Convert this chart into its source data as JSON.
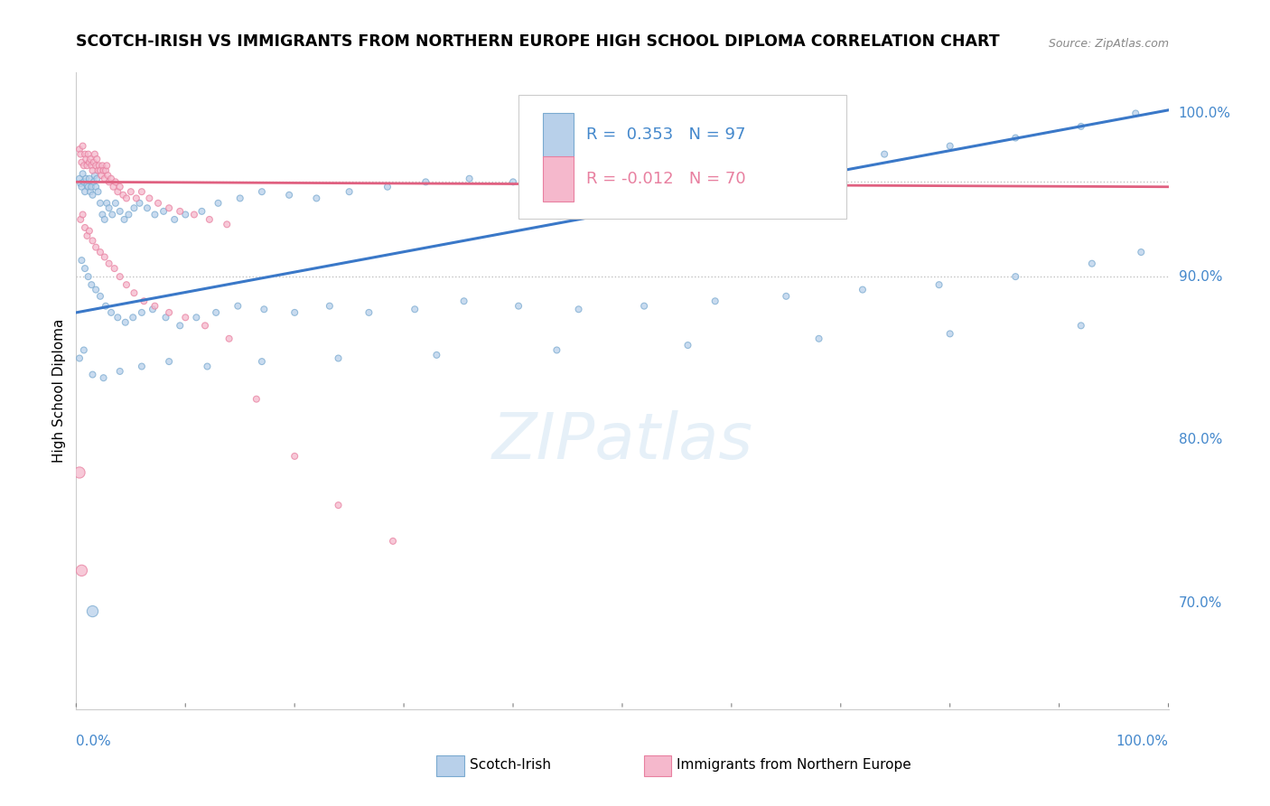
{
  "title": "SCOTCH-IRISH VS IMMIGRANTS FROM NORTHERN EUROPE HIGH SCHOOL DIPLOMA CORRELATION CHART",
  "source": "Source: ZipAtlas.com",
  "ylabel": "High School Diploma",
  "yaxis_labels": [
    "70.0%",
    "80.0%",
    "90.0%",
    "100.0%"
  ],
  "yaxis_values": [
    0.7,
    0.8,
    0.9,
    1.0
  ],
  "xmin": 0.0,
  "xmax": 1.0,
  "ymin": 0.635,
  "ymax": 1.025,
  "blue_r": 0.353,
  "blue_n": 97,
  "pink_r": -0.012,
  "pink_n": 70,
  "blue_fill": "#b8d0ea",
  "pink_fill": "#f5b8cc",
  "blue_edge": "#7aaad0",
  "pink_edge": "#e880a0",
  "blue_line_color": "#3a78c8",
  "pink_line_color": "#e06080",
  "legend_r_color": "#4488cc",
  "legend_n_color": "#222222",
  "ref_line_y1": 0.958,
  "ref_line_y2": 0.9,
  "watermark": "ZIPatlas",
  "blue_line_x0": 0.0,
  "blue_line_y0": 0.878,
  "blue_line_x1": 1.0,
  "blue_line_y1": 1.002,
  "pink_line_x0": 0.0,
  "pink_line_y0": 0.958,
  "pink_line_x1": 1.0,
  "pink_line_y1": 0.955,
  "blue_scatter_x": [
    0.003,
    0.004,
    0.005,
    0.006,
    0.007,
    0.008,
    0.009,
    0.01,
    0.011,
    0.012,
    0.013,
    0.014,
    0.015,
    0.016,
    0.017,
    0.018,
    0.019,
    0.02,
    0.022,
    0.024,
    0.026,
    0.028,
    0.03,
    0.033,
    0.036,
    0.04,
    0.044,
    0.048,
    0.053,
    0.058,
    0.065,
    0.072,
    0.08,
    0.09,
    0.1,
    0.115,
    0.13,
    0.15,
    0.17,
    0.195,
    0.22,
    0.25,
    0.285,
    0.32,
    0.36,
    0.4,
    0.45,
    0.5,
    0.56,
    0.62,
    0.68,
    0.74,
    0.8,
    0.86,
    0.92,
    0.97,
    0.005,
    0.008,
    0.011,
    0.014,
    0.018,
    0.022,
    0.027,
    0.032,
    0.038,
    0.045,
    0.052,
    0.06,
    0.07,
    0.082,
    0.095,
    0.11,
    0.128,
    0.148,
    0.172,
    0.2,
    0.232,
    0.268,
    0.31,
    0.355,
    0.405,
    0.46,
    0.52,
    0.585,
    0.65,
    0.72,
    0.79,
    0.86,
    0.93,
    0.975,
    0.003,
    0.007,
    0.015,
    0.025,
    0.04,
    0.06,
    0.085,
    0.12,
    0.17,
    0.24,
    0.33,
    0.44,
    0.56,
    0.68,
    0.8,
    0.92,
    0.015
  ],
  "blue_scatter_y": [
    0.96,
    0.957,
    0.955,
    0.963,
    0.958,
    0.952,
    0.96,
    0.956,
    0.955,
    0.96,
    0.952,
    0.955,
    0.95,
    0.958,
    0.962,
    0.955,
    0.96,
    0.952,
    0.945,
    0.938,
    0.935,
    0.945,
    0.942,
    0.938,
    0.945,
    0.94,
    0.935,
    0.938,
    0.942,
    0.945,
    0.942,
    0.938,
    0.94,
    0.935,
    0.938,
    0.94,
    0.945,
    0.948,
    0.952,
    0.95,
    0.948,
    0.952,
    0.955,
    0.958,
    0.96,
    0.958,
    0.962,
    0.96,
    0.965,
    0.968,
    0.97,
    0.975,
    0.98,
    0.985,
    0.992,
    1.0,
    0.91,
    0.905,
    0.9,
    0.895,
    0.892,
    0.888,
    0.882,
    0.878,
    0.875,
    0.872,
    0.875,
    0.878,
    0.88,
    0.875,
    0.87,
    0.875,
    0.878,
    0.882,
    0.88,
    0.878,
    0.882,
    0.878,
    0.88,
    0.885,
    0.882,
    0.88,
    0.882,
    0.885,
    0.888,
    0.892,
    0.895,
    0.9,
    0.908,
    0.915,
    0.85,
    0.855,
    0.84,
    0.838,
    0.842,
    0.845,
    0.848,
    0.845,
    0.848,
    0.85,
    0.852,
    0.855,
    0.858,
    0.862,
    0.865,
    0.87,
    0.695
  ],
  "blue_scatter_sizes": [
    14,
    14,
    14,
    14,
    14,
    14,
    14,
    14,
    14,
    14,
    14,
    14,
    14,
    14,
    14,
    14,
    14,
    14,
    14,
    14,
    14,
    14,
    14,
    14,
    14,
    14,
    14,
    14,
    14,
    14,
    14,
    14,
    14,
    14,
    14,
    14,
    14,
    14,
    14,
    14,
    14,
    14,
    14,
    14,
    14,
    14,
    14,
    14,
    14,
    14,
    14,
    14,
    14,
    14,
    14,
    14,
    14,
    14,
    14,
    14,
    14,
    14,
    14,
    14,
    14,
    14,
    14,
    14,
    14,
    14,
    14,
    14,
    14,
    14,
    14,
    14,
    14,
    14,
    14,
    14,
    14,
    14,
    14,
    14,
    14,
    14,
    14,
    14,
    14,
    14,
    14,
    14,
    14,
    14,
    14,
    14,
    14,
    14,
    14,
    14,
    14,
    14,
    14,
    14,
    14,
    14,
    30
  ],
  "pink_scatter_x": [
    0.003,
    0.004,
    0.005,
    0.006,
    0.007,
    0.008,
    0.009,
    0.01,
    0.011,
    0.012,
    0.013,
    0.014,
    0.015,
    0.016,
    0.017,
    0.018,
    0.019,
    0.02,
    0.021,
    0.022,
    0.023,
    0.024,
    0.025,
    0.026,
    0.027,
    0.028,
    0.029,
    0.03,
    0.032,
    0.034,
    0.036,
    0.038,
    0.04,
    0.043,
    0.046,
    0.05,
    0.055,
    0.06,
    0.067,
    0.075,
    0.085,
    0.095,
    0.108,
    0.122,
    0.138,
    0.004,
    0.006,
    0.008,
    0.01,
    0.012,
    0.015,
    0.018,
    0.022,
    0.026,
    0.03,
    0.035,
    0.04,
    0.046,
    0.053,
    0.062,
    0.072,
    0.085,
    0.1,
    0.118,
    0.14,
    0.165,
    0.2,
    0.24,
    0.29,
    0.003,
    0.005
  ],
  "pink_scatter_y": [
    0.978,
    0.975,
    0.97,
    0.98,
    0.968,
    0.975,
    0.972,
    0.968,
    0.975,
    0.97,
    0.972,
    0.968,
    0.965,
    0.97,
    0.975,
    0.968,
    0.972,
    0.965,
    0.968,
    0.965,
    0.962,
    0.968,
    0.965,
    0.96,
    0.965,
    0.968,
    0.962,
    0.958,
    0.96,
    0.955,
    0.958,
    0.952,
    0.955,
    0.95,
    0.948,
    0.952,
    0.948,
    0.952,
    0.948,
    0.945,
    0.942,
    0.94,
    0.938,
    0.935,
    0.932,
    0.935,
    0.938,
    0.93,
    0.925,
    0.928,
    0.922,
    0.918,
    0.915,
    0.912,
    0.908,
    0.905,
    0.9,
    0.895,
    0.89,
    0.885,
    0.882,
    0.878,
    0.875,
    0.87,
    0.862,
    0.825,
    0.79,
    0.76,
    0.738,
    0.78,
    0.72
  ],
  "pink_scatter_sizes": [
    14,
    14,
    14,
    14,
    14,
    14,
    14,
    14,
    14,
    14,
    14,
    14,
    14,
    14,
    14,
    14,
    14,
    14,
    14,
    14,
    14,
    14,
    14,
    14,
    14,
    14,
    14,
    14,
    14,
    14,
    14,
    14,
    14,
    14,
    14,
    14,
    14,
    14,
    14,
    14,
    14,
    14,
    14,
    14,
    14,
    14,
    14,
    14,
    14,
    14,
    14,
    14,
    14,
    14,
    14,
    14,
    14,
    14,
    14,
    14,
    14,
    14,
    14,
    14,
    14,
    14,
    14,
    14,
    14,
    30,
    30
  ]
}
